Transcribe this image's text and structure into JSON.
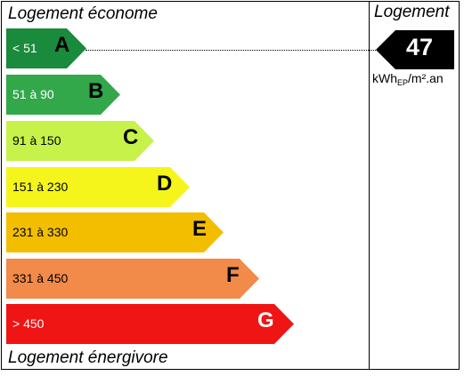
{
  "labels": {
    "top": "Logement économe",
    "bottom": "Logement énergivore",
    "right": "Logement"
  },
  "classes": [
    {
      "range": "< 51",
      "letter": "A",
      "color": "#1a8a3c"
    },
    {
      "range": "51 à 90",
      "letter": "B",
      "color": "#32a84a"
    },
    {
      "range": "91 à 150",
      "letter": "C",
      "color": "#c6f24a"
    },
    {
      "range": "151 à 230",
      "letter": "D",
      "color": "#f5f51b"
    },
    {
      "range": "231 à 330",
      "letter": "E",
      "color": "#f3be00"
    },
    {
      "range": "331 à 450",
      "letter": "F",
      "color": "#f28a4a"
    },
    {
      "range": "> 450",
      "letter": "G",
      "color": "#ef1515"
    }
  ],
  "value": {
    "number": "47",
    "unit_main": "kWh",
    "unit_sub": "EP",
    "unit_tail": "/m².an",
    "current_class": "A",
    "color": "#000000"
  }
}
